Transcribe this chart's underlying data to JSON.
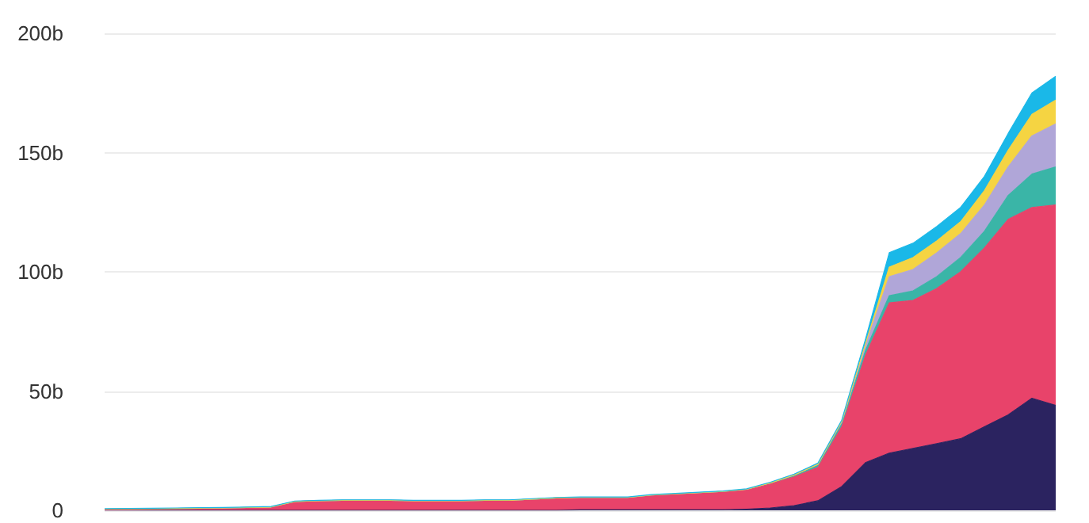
{
  "chart_data": {
    "type": "area",
    "stacked": true,
    "categories": [
      null,
      null,
      null,
      null,
      null,
      null,
      null,
      null,
      null,
      null,
      null,
      null,
      null,
      null,
      null,
      null,
      null,
      null,
      null,
      null,
      null,
      null,
      null,
      null,
      null,
      null,
      null,
      null,
      null,
      null,
      null,
      null,
      null,
      null,
      null,
      null,
      null,
      null,
      null,
      null,
      null
    ],
    "series": [
      {
        "color": "#2b2360",
        "values": [
          0,
          0,
          0,
          0,
          0,
          0,
          0,
          0,
          0,
          0,
          0,
          0,
          0,
          0,
          0,
          0,
          0,
          0,
          0,
          0,
          0.2,
          0.2,
          0.2,
          0.2,
          0.2,
          0.2,
          0.2,
          0.5,
          1,
          2,
          4,
          10,
          20,
          24,
          26,
          28,
          30,
          35,
          40,
          47,
          44
        ]
      },
      {
        "color": "#e8436a",
        "values": [
          0.3,
          0.4,
          0.5,
          0.6,
          0.7,
          0.8,
          1,
          1.2,
          3.5,
          3.8,
          4,
          4,
          4,
          3.8,
          3.8,
          3.8,
          4,
          4,
          4.5,
          5,
          5,
          5,
          5,
          6,
          6.5,
          7,
          7.5,
          8,
          10,
          12,
          14,
          25,
          45,
          63,
          62,
          65,
          70,
          75,
          82,
          80,
          84
        ]
      },
      {
        "color": "#3ab5a7",
        "values": [
          0.2,
          0.2,
          0.2,
          0.2,
          0.2,
          0.2,
          0.2,
          0.2,
          0.2,
          0.2,
          0.2,
          0.2,
          0.2,
          0.2,
          0.2,
          0.2,
          0.2,
          0.2,
          0.2,
          0.2,
          0.2,
          0.2,
          0.2,
          0.2,
          0.2,
          0.2,
          0.2,
          0.3,
          0.5,
          0.8,
          1,
          1.5,
          2,
          3,
          4,
          5,
          6,
          7,
          10,
          14,
          16
        ]
      },
      {
        "color": "#b0a6d8",
        "values": [
          0,
          0,
          0,
          0,
          0,
          0,
          0,
          0,
          0,
          0,
          0,
          0,
          0,
          0,
          0,
          0,
          0,
          0,
          0,
          0,
          0,
          0,
          0,
          0,
          0,
          0,
          0,
          0,
          0,
          0,
          0.3,
          0.5,
          2,
          8,
          9,
          10,
          10,
          11,
          12,
          16,
          18
        ]
      },
      {
        "color": "#f5d442",
        "values": [
          0,
          0,
          0,
          0,
          0,
          0,
          0,
          0,
          0,
          0,
          0,
          0,
          0,
          0,
          0,
          0,
          0,
          0,
          0,
          0,
          0,
          0,
          0,
          0,
          0,
          0,
          0,
          0,
          0,
          0,
          0,
          0.3,
          0.8,
          4,
          5,
          5,
          5,
          6,
          7,
          9,
          10
        ]
      },
      {
        "color": "#1ab8e8",
        "values": [
          0.2,
          0.2,
          0.2,
          0.2,
          0.2,
          0.2,
          0.2,
          0.2,
          0.2,
          0.2,
          0.2,
          0.2,
          0.2,
          0.2,
          0.2,
          0.2,
          0.2,
          0.2,
          0.2,
          0.2,
          0.2,
          0.2,
          0.2,
          0.2,
          0.2,
          0.2,
          0.2,
          0.2,
          0.3,
          0.4,
          0.5,
          0.5,
          2,
          6,
          6,
          6,
          6,
          6,
          7,
          9,
          10
        ]
      }
    ],
    "ylim": [
      0,
      200
    ],
    "yticks": [
      {
        "value": 0,
        "label": "0"
      },
      {
        "value": 50,
        "label": "50b"
      },
      {
        "value": 100,
        "label": "100b"
      },
      {
        "value": 150,
        "label": "150b"
      },
      {
        "value": 200,
        "label": "200b"
      }
    ],
    "grid": "y",
    "tick_labels": "y"
  }
}
